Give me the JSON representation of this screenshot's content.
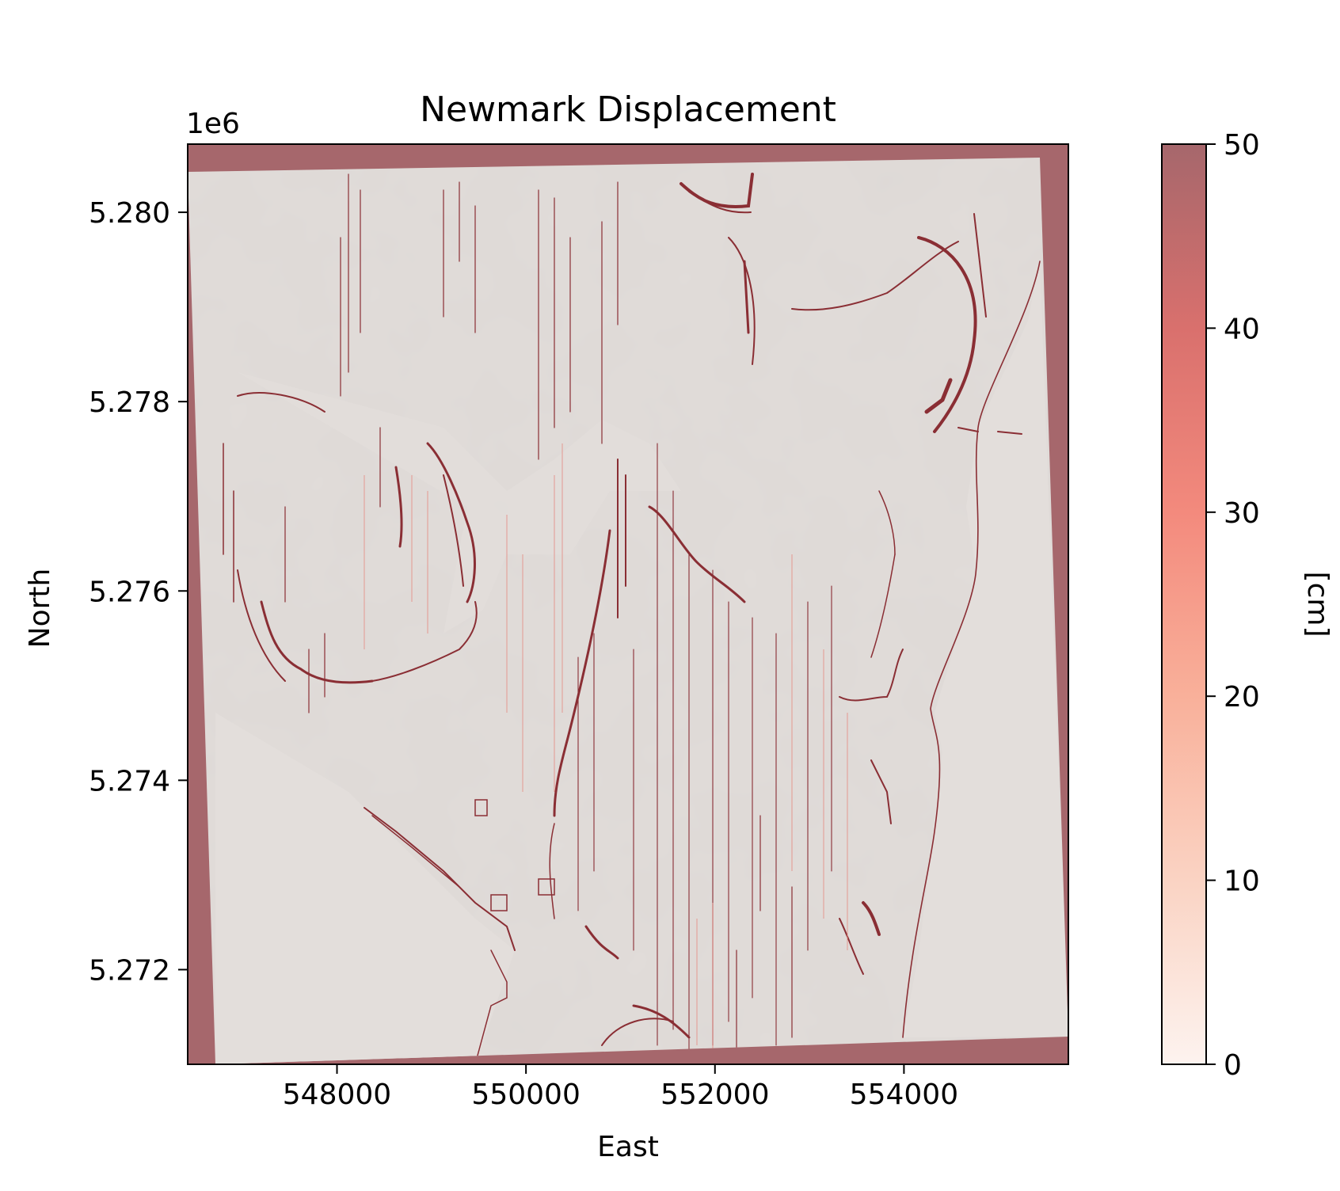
{
  "chart_data": {
    "type": "heatmap",
    "title": "Newmark Displacement",
    "xlabel": "East",
    "ylabel": "North",
    "x_ticks": [
      548000,
      550000,
      552000,
      554000
    ],
    "y_ticks": [
      5.272,
      5.274,
      5.276,
      5.278,
      5.28
    ],
    "y_offset_label": "1e6",
    "xlim": [
      546420,
      555740
    ],
    "ylim": [
      5271000,
      5280720
    ],
    "colorbar": {
      "label": "[cm]",
      "ticks": [
        0,
        10,
        20,
        30,
        40,
        50
      ],
      "range": [
        0,
        50
      ],
      "colormap": "Reds",
      "alpha": 0.6
    },
    "nodata_color": "#a6676c",
    "background_color": "#e1dcd9",
    "grid": false
  }
}
